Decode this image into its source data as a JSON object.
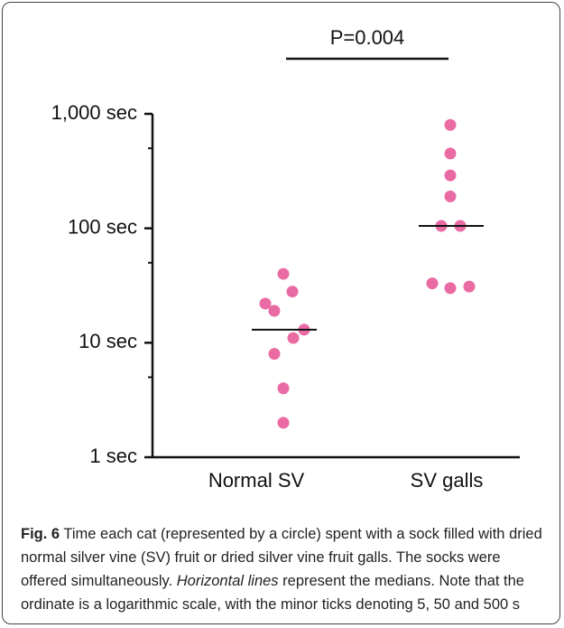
{
  "chart_data": {
    "type": "strip",
    "log_y": true,
    "annotation": "P=0.004",
    "categories": [
      "Normal SV",
      "SV galls"
    ],
    "values": [
      [
        40,
        28,
        22,
        19,
        13,
        11,
        8,
        4,
        2
      ],
      [
        800,
        450,
        290,
        190,
        105,
        105,
        33,
        30,
        31
      ]
    ],
    "medians": [
      13,
      105
    ],
    "color": "#ea6aa3",
    "ylim": [
      1,
      1000
    ],
    "yticks": [
      {
        "value": 1,
        "label": "1 sec"
      },
      {
        "value": 10,
        "label": "10 sec"
      },
      {
        "value": 100,
        "label": "100 sec"
      },
      {
        "value": 1000,
        "label": "1,000 sec"
      }
    ],
    "yminor": [
      5,
      50,
      500
    ]
  },
  "caption": {
    "label": "Fig. 6",
    "text_1": "Time each cat (represented by a circle) spent with a sock filled with dried normal silver vine (SV) fruit or dried silver vine fruit galls. The socks were offered simultaneously.",
    "italic": "Horizontal lines",
    "text_2": "represent the medians. Note that the ordinate is a logarithmic scale, with the minor ticks denoting 5, 50 and 500 s"
  }
}
